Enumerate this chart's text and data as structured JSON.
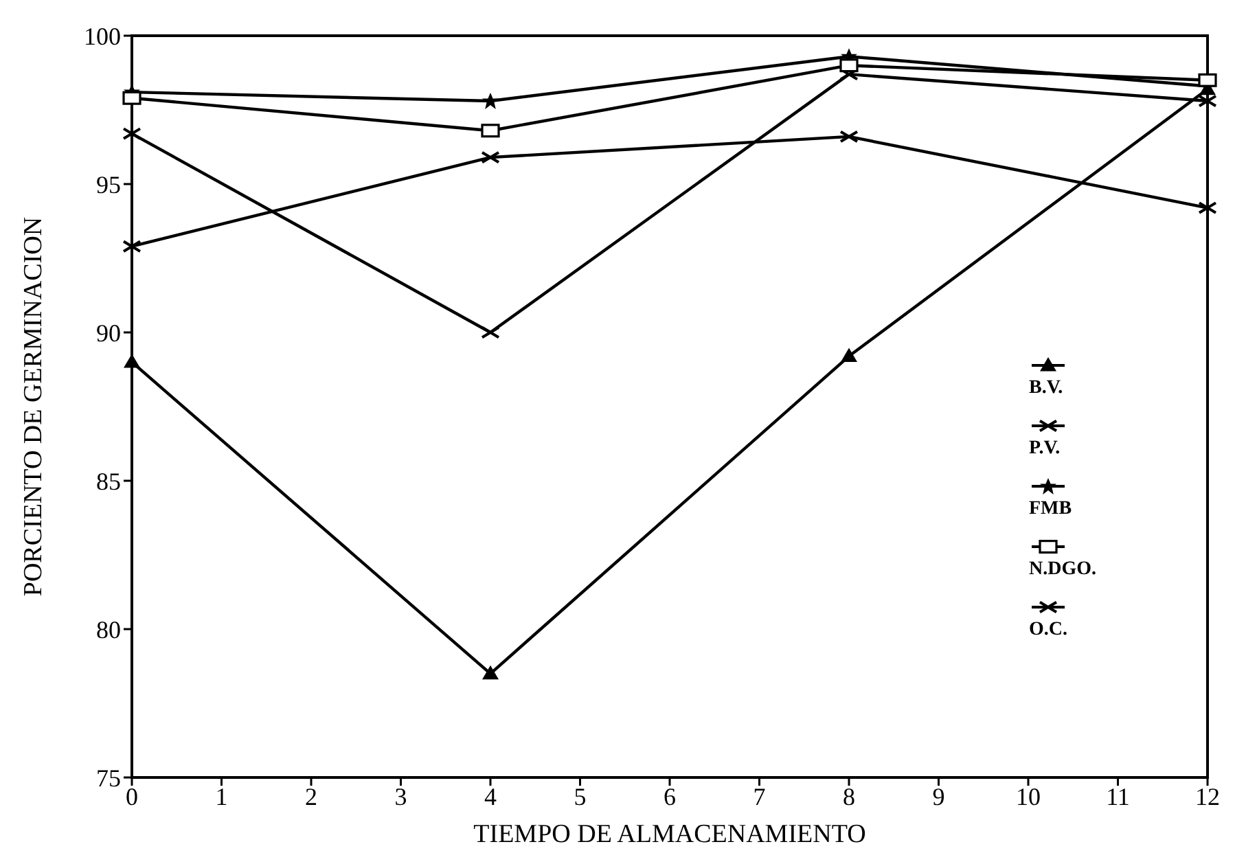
{
  "chart_data": {
    "type": "line",
    "xlabel": "TIEMPO DE ALMACENAMIENTO",
    "ylabel": "PORCIENTO DE GERMINACION",
    "x": [
      0,
      4,
      8,
      12
    ],
    "xlim": [
      0,
      12
    ],
    "xticks": [
      0,
      1,
      2,
      3,
      4,
      5,
      6,
      7,
      8,
      9,
      10,
      11,
      12
    ],
    "ylim": [
      75,
      100
    ],
    "yticks": [
      75,
      80,
      85,
      90,
      95,
      100
    ],
    "grid": false,
    "legend": "right",
    "line_style": "solid",
    "series": [
      {
        "name": "B.V.",
        "color": "#000000",
        "marker": "triangle",
        "values": [
          89.0,
          78.5,
          89.2,
          98.2
        ]
      },
      {
        "name": "P.V.",
        "color": "#000000",
        "marker": "cross",
        "values": [
          96.7,
          90.0,
          98.7,
          97.8
        ]
      },
      {
        "name": "FMB",
        "color": "#000000",
        "marker": "star",
        "values": [
          98.1,
          97.8,
          99.3,
          98.3
        ]
      },
      {
        "name": "N.DGO.",
        "color": "#000000",
        "marker": "square",
        "values": [
          97.9,
          96.8,
          99.0,
          98.5
        ]
      },
      {
        "name": "O.C.",
        "color": "#000000",
        "marker": "cross",
        "values": [
          92.9,
          95.9,
          96.6,
          94.2
        ]
      }
    ]
  }
}
